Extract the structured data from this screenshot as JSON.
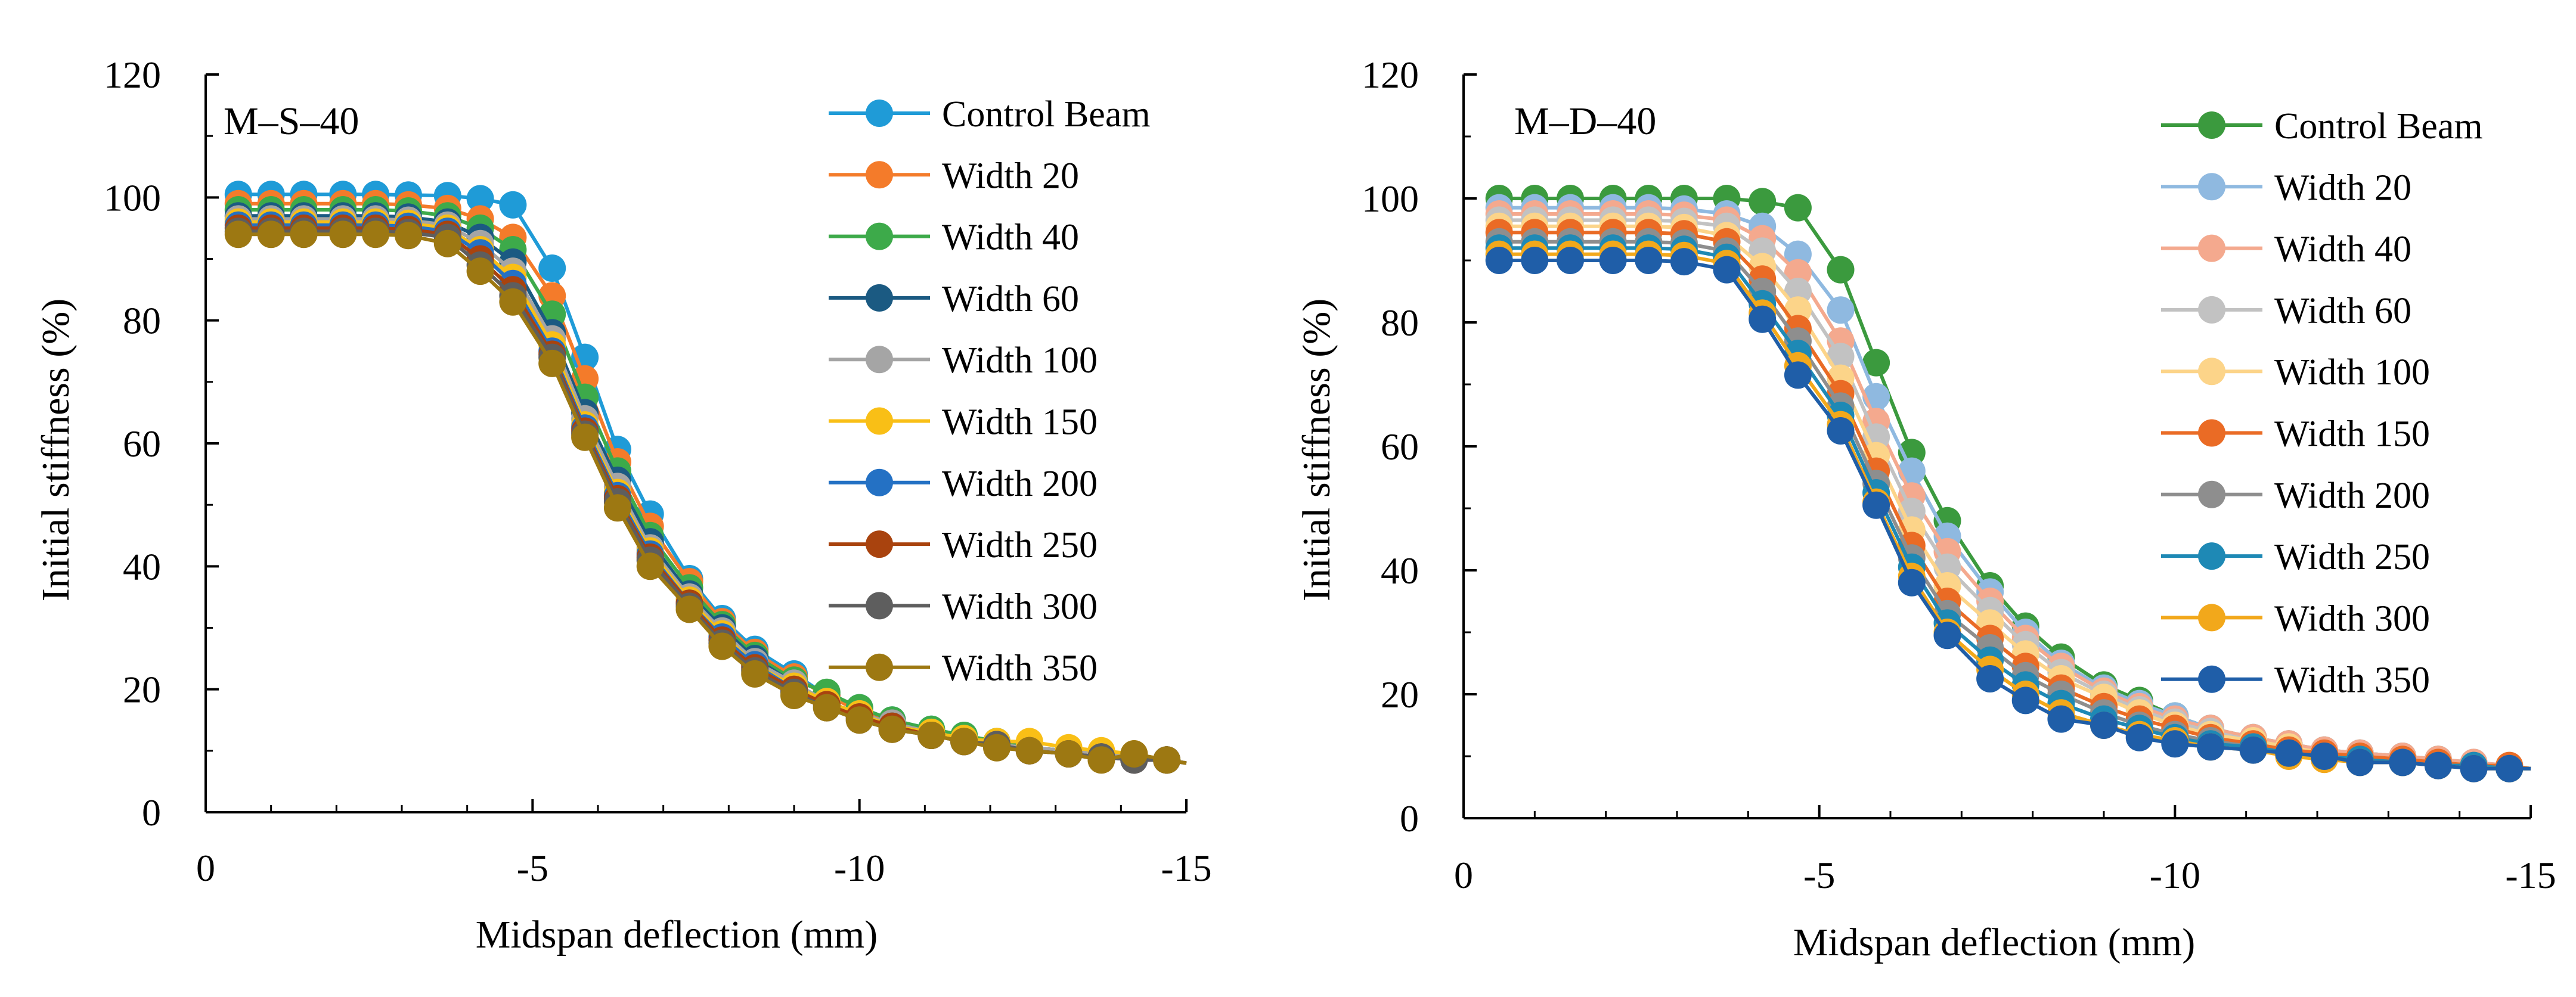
{
  "chart_data": [
    {
      "type": "line",
      "panel_label": "M–S–40",
      "xlabel": "Midspan deflection (mm)",
      "ylabel": "Initial stiffness (%)",
      "xlim": [
        0,
        -15
      ],
      "ylim": [
        0,
        120
      ],
      "xticks": [
        0,
        -5,
        -10,
        -15
      ],
      "xtick_labels": [
        "0",
        "-5",
        "-10",
        "-15"
      ],
      "yticks": [
        0,
        20,
        40,
        60,
        80,
        100,
        120
      ],
      "ytick_labels": [
        "0",
        "20",
        "40",
        "60",
        "80",
        "100",
        "120"
      ],
      "legend_position": "top-right",
      "x": [
        -0.5,
        -1.0,
        -1.5,
        -2.1,
        -2.6,
        -3.1,
        -3.7,
        -4.2,
        -4.7,
        -5.3,
        -5.8,
        -6.3,
        -6.8,
        -7.4,
        -7.9,
        -8.4,
        -9.0,
        -9.5,
        -10.0,
        -10.5,
        -11.1,
        -11.6,
        -12.1,
        -12.6,
        -13.2,
        -13.7,
        -14.2,
        -14.7,
        -15.0
      ],
      "series": [
        {
          "name": "Control Beam",
          "color": "#1F9BD7",
          "values": [
            100.5,
            100.5,
            100.5,
            100.5,
            100.5,
            100.4,
            100.3,
            99.8,
            98.8,
            88.5,
            74.0,
            59.0,
            48.5,
            38.0,
            31.5,
            26.5,
            22.5,
            19.0,
            17.0,
            15.0,
            13.5,
            12.5,
            11.5,
            10.5,
            10.0,
            9.5,
            9.0,
            8.5,
            8.0
          ]
        },
        {
          "name": "Width 20",
          "color": "#F47B2A",
          "values": [
            99.0,
            99.0,
            99.0,
            99.0,
            99.0,
            98.8,
            98.2,
            96.5,
            93.5,
            84.0,
            70.5,
            57.0,
            46.5,
            37.5,
            31.0,
            26.0,
            22.0,
            19.0,
            16.5,
            14.5,
            13.0,
            12.0,
            11.0,
            10.5,
            10.0,
            9.5,
            9.0,
            8.5,
            8.0
          ]
        },
        {
          "name": "Width 40",
          "color": "#3DAA4A",
          "values": [
            98.0,
            98.0,
            98.0,
            98.0,
            98.0,
            97.8,
            97.0,
            95.0,
            91.5,
            81.0,
            67.5,
            55.5,
            45.0,
            36.5,
            30.5,
            25.5,
            21.5,
            19.5,
            17.0,
            15.0,
            13.5,
            12.5,
            11.5,
            10.5,
            10.0,
            9.5,
            9.0,
            8.5,
            8.0
          ]
        },
        {
          "name": "Width 60",
          "color": "#1B5A82",
          "values": [
            97.0,
            97.0,
            97.0,
            97.0,
            97.0,
            96.8,
            96.0,
            93.5,
            89.5,
            78.0,
            65.0,
            54.0,
            44.0,
            35.5,
            30.0,
            25.0,
            21.0,
            18.0,
            16.0,
            14.5,
            13.0,
            12.0,
            11.0,
            10.5,
            10.0,
            9.5,
            9.0,
            8.5,
            8.0
          ]
        },
        {
          "name": "Width 100",
          "color": "#A5A5A5",
          "values": [
            96.5,
            96.5,
            96.5,
            96.5,
            96.5,
            96.3,
            95.5,
            92.5,
            88.0,
            77.0,
            64.0,
            53.0,
            43.0,
            35.0,
            29.5,
            24.5,
            21.0,
            18.0,
            16.0,
            14.5,
            13.0,
            12.0,
            11.0,
            10.5,
            10.0,
            9.5,
            9.0,
            8.5,
            8.0
          ]
        },
        {
          "name": "Width 150",
          "color": "#F9BF16",
          "values": [
            96.0,
            96.0,
            96.0,
            96.0,
            96.0,
            95.8,
            95.0,
            91.5,
            87.0,
            76.0,
            63.0,
            52.0,
            42.5,
            34.5,
            29.0,
            24.0,
            20.5,
            18.0,
            16.0,
            14.0,
            13.0,
            12.0,
            11.5,
            11.5,
            10.5,
            10.0,
            9.5,
            8.5,
            8.0
          ]
        },
        {
          "name": "Width 200",
          "color": "#2471C4",
          "values": [
            95.5,
            95.5,
            95.5,
            95.5,
            95.5,
            95.3,
            94.5,
            91.0,
            86.0,
            75.0,
            62.5,
            51.5,
            42.0,
            34.0,
            28.5,
            24.0,
            20.0,
            17.5,
            15.5,
            14.0,
            12.5,
            11.5,
            11.0,
            10.0,
            9.5,
            9.0,
            8.5,
            8.5,
            8.0
          ]
        },
        {
          "name": "Width 250",
          "color": "#A9430E",
          "values": [
            95.0,
            95.0,
            95.0,
            95.0,
            95.0,
            94.8,
            94.0,
            90.0,
            85.0,
            74.5,
            62.0,
            51.0,
            41.5,
            34.0,
            28.0,
            23.5,
            20.0,
            17.5,
            15.5,
            14.0,
            12.5,
            11.5,
            11.0,
            10.0,
            9.5,
            9.0,
            8.5,
            8.5,
            8.0
          ]
        },
        {
          "name": "Width 300",
          "color": "#5E5E5E",
          "values": [
            94.5,
            94.5,
            94.5,
            94.5,
            94.5,
            94.3,
            93.5,
            89.0,
            84.0,
            74.0,
            61.5,
            50.5,
            41.0,
            33.5,
            27.5,
            23.0,
            19.5,
            17.0,
            15.0,
            13.5,
            12.5,
            11.5,
            11.0,
            10.0,
            9.5,
            9.0,
            8.5,
            8.5,
            8.0
          ]
        },
        {
          "name": "Width 350",
          "color": "#9D7812",
          "values": [
            94.0,
            94.0,
            94.0,
            94.0,
            94.0,
            93.8,
            92.5,
            88.0,
            83.0,
            73.0,
            61.0,
            49.5,
            40.0,
            33.0,
            27.0,
            22.5,
            19.0,
            17.0,
            15.0,
            13.5,
            12.5,
            11.5,
            10.5,
            10.0,
            9.5,
            8.5,
            9.5,
            8.5,
            8.0
          ]
        }
      ]
    },
    {
      "type": "line",
      "panel_label": "M–D–40",
      "xlabel": "Midspan deflection (mm)",
      "ylabel": "Initial stiffness (%)",
      "xlim": [
        0,
        -15
      ],
      "ylim": [
        0,
        120
      ],
      "xticks": [
        0,
        -5,
        -10,
        -15
      ],
      "xtick_labels": [
        "0",
        "-5",
        "-10",
        "-15"
      ],
      "yticks": [
        0,
        20,
        40,
        60,
        80,
        100,
        120
      ],
      "ytick_labels": [
        "0",
        "20",
        "40",
        "60",
        "80",
        "100",
        "120"
      ],
      "legend_position": "top-right",
      "x": [
        -0.5,
        -1.0,
        -1.5,
        -2.1,
        -2.6,
        -3.1,
        -3.7,
        -4.2,
        -4.7,
        -5.3,
        -5.8,
        -6.3,
        -6.8,
        -7.4,
        -7.9,
        -8.4,
        -9.0,
        -9.5,
        -10.0,
        -10.5,
        -11.1,
        -11.6,
        -12.1,
        -12.6,
        -13.2,
        -13.7,
        -14.2,
        -14.7,
        -15.0
      ],
      "series": [
        {
          "name": "Control Beam",
          "color": "#3B9A3E",
          "values": [
            100.0,
            100.0,
            100.0,
            100.0,
            100.0,
            100.0,
            100.0,
            99.5,
            98.5,
            88.5,
            73.5,
            59.0,
            48.0,
            37.5,
            31.0,
            26.0,
            21.5,
            19.0,
            16.5,
            14.5,
            13.0,
            12.0,
            11.0,
            10.5,
            10.0,
            9.5,
            8.5,
            8.0,
            8.0
          ]
        },
        {
          "name": "Width 20",
          "color": "#8FB9E0",
          "values": [
            98.5,
            98.5,
            98.5,
            98.5,
            98.5,
            98.3,
            97.5,
            95.5,
            91.0,
            82.0,
            68.0,
            56.0,
            45.5,
            36.5,
            30.0,
            25.0,
            21.0,
            18.5,
            16.5,
            14.5,
            13.0,
            12.0,
            11.0,
            10.5,
            10.0,
            9.5,
            9.0,
            8.5,
            8.0
          ]
        },
        {
          "name": "Width 40",
          "color": "#F4A98E",
          "values": [
            97.5,
            97.5,
            97.5,
            97.5,
            97.5,
            97.3,
            96.5,
            93.5,
            88.0,
            77.0,
            64.0,
            52.0,
            43.0,
            35.0,
            29.0,
            24.5,
            20.5,
            18.0,
            16.0,
            14.5,
            13.0,
            12.0,
            11.0,
            10.5,
            10.0,
            9.5,
            9.0,
            8.5,
            8.0
          ]
        },
        {
          "name": "Width 60",
          "color": "#C2C2C2",
          "values": [
            96.5,
            96.5,
            96.5,
            96.5,
            96.5,
            96.3,
            95.5,
            91.5,
            85.0,
            74.5,
            61.5,
            49.5,
            40.5,
            33.5,
            28.0,
            23.5,
            20.0,
            17.5,
            15.5,
            14.0,
            12.5,
            11.5,
            10.5,
            10.0,
            9.5,
            9.0,
            8.5,
            8.5,
            8.0
          ]
        },
        {
          "name": "Width 100",
          "color": "#FCD489",
          "values": [
            95.5,
            95.5,
            95.5,
            95.5,
            95.5,
            95.3,
            94.0,
            89.0,
            82.0,
            71.0,
            58.5,
            46.5,
            37.5,
            31.5,
            26.5,
            22.5,
            19.5,
            17.0,
            15.0,
            13.5,
            12.5,
            11.5,
            10.5,
            10.0,
            9.5,
            9.0,
            8.5,
            8.5,
            8.0
          ]
        },
        {
          "name": "Width 150",
          "color": "#EA6B25",
          "values": [
            94.5,
            94.5,
            94.5,
            94.5,
            94.5,
            94.3,
            93.0,
            87.0,
            79.0,
            68.5,
            56.0,
            44.0,
            35.0,
            29.0,
            24.5,
            21.0,
            18.0,
            16.0,
            14.5,
            13.0,
            12.0,
            11.0,
            10.5,
            10.0,
            9.5,
            9.0,
            8.5,
            8.5,
            8.0
          ]
        },
        {
          "name": "Width 200",
          "color": "#8E8E8E",
          "values": [
            93.0,
            93.0,
            93.0,
            93.0,
            93.0,
            92.8,
            91.5,
            85.0,
            77.0,
            66.5,
            54.0,
            42.0,
            33.0,
            27.5,
            23.0,
            20.0,
            17.0,
            15.0,
            13.5,
            12.5,
            11.5,
            10.5,
            10.0,
            9.5,
            9.0,
            8.5,
            8.5,
            8.0,
            8.0
          ]
        },
        {
          "name": "Width 250",
          "color": "#1E89B5",
          "values": [
            92.0,
            92.0,
            92.0,
            92.0,
            92.0,
            91.8,
            90.5,
            83.0,
            75.0,
            65.0,
            52.5,
            40.5,
            31.5,
            25.5,
            21.5,
            18.5,
            16.0,
            14.5,
            13.0,
            12.0,
            11.5,
            10.5,
            10.0,
            9.5,
            9.0,
            8.5,
            8.5,
            8.0,
            8.0
          ]
        },
        {
          "name": "Width 300",
          "color": "#F2A81B",
          "values": [
            91.0,
            91.0,
            91.0,
            91.0,
            91.0,
            90.8,
            89.5,
            81.5,
            73.0,
            63.5,
            51.0,
            39.0,
            30.0,
            24.0,
            20.0,
            17.0,
            15.0,
            13.5,
            12.5,
            11.5,
            11.0,
            10.0,
            9.5,
            9.0,
            9.0,
            8.5,
            8.0,
            8.0,
            8.0
          ]
        },
        {
          "name": "Width 350",
          "color": "#1F5EA8",
          "values": [
            90.0,
            90.0,
            90.0,
            90.0,
            90.0,
            89.8,
            88.5,
            80.5,
            71.5,
            62.5,
            50.5,
            38.0,
            29.5,
            22.5,
            19.0,
            16.0,
            15.0,
            13.0,
            12.0,
            11.5,
            11.0,
            10.5,
            10.0,
            9.0,
            9.0,
            8.5,
            8.0,
            8.0,
            8.0
          ]
        }
      ]
    }
  ]
}
